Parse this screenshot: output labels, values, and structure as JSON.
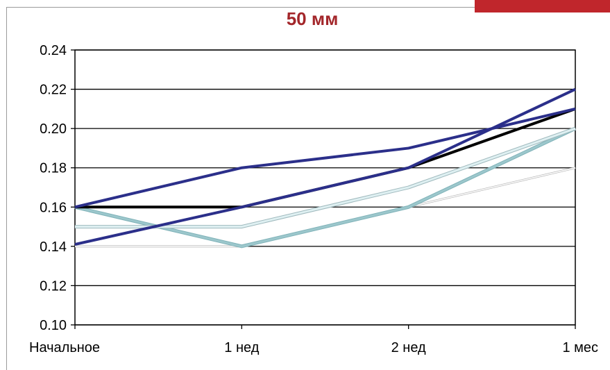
{
  "chart_data": {
    "type": "line",
    "title": "50 мм",
    "xlabel": "",
    "ylabel": "",
    "categories": [
      "Начальное",
      "1 нед",
      "2 нед",
      "1 мес"
    ],
    "ylim": [
      0.1,
      0.24
    ],
    "yticks": [
      "0.10",
      "0.12",
      "0.14",
      "0.16",
      "0.18",
      "0.20",
      "0.22",
      "0.24"
    ],
    "grid": true,
    "series": [
      {
        "values": [
          0.14,
          0.14,
          0.16,
          0.18
        ],
        "color": "#ffffff",
        "stroke": "#b8b8b8"
      },
      {
        "values": [
          0.16,
          0.14,
          0.16,
          0.2
        ],
        "color": "#9cc7cc",
        "stroke": "#7fb2b8"
      },
      {
        "values": [
          0.15,
          0.15,
          0.17,
          0.2
        ],
        "color": "#dff0f2",
        "stroke": "#9fb9bd"
      },
      {
        "values": [
          0.16,
          0.16,
          0.18,
          0.21
        ],
        "color": "#000000"
      },
      {
        "values": [
          0.16,
          0.18,
          0.19,
          0.21
        ],
        "color": "#2b2f8a"
      },
      {
        "values": [
          0.141,
          0.16,
          0.18,
          0.22
        ],
        "color": "#2b2f8a"
      }
    ]
  },
  "colors": {
    "accent": "#c0262c",
    "title": "#a3262a"
  }
}
